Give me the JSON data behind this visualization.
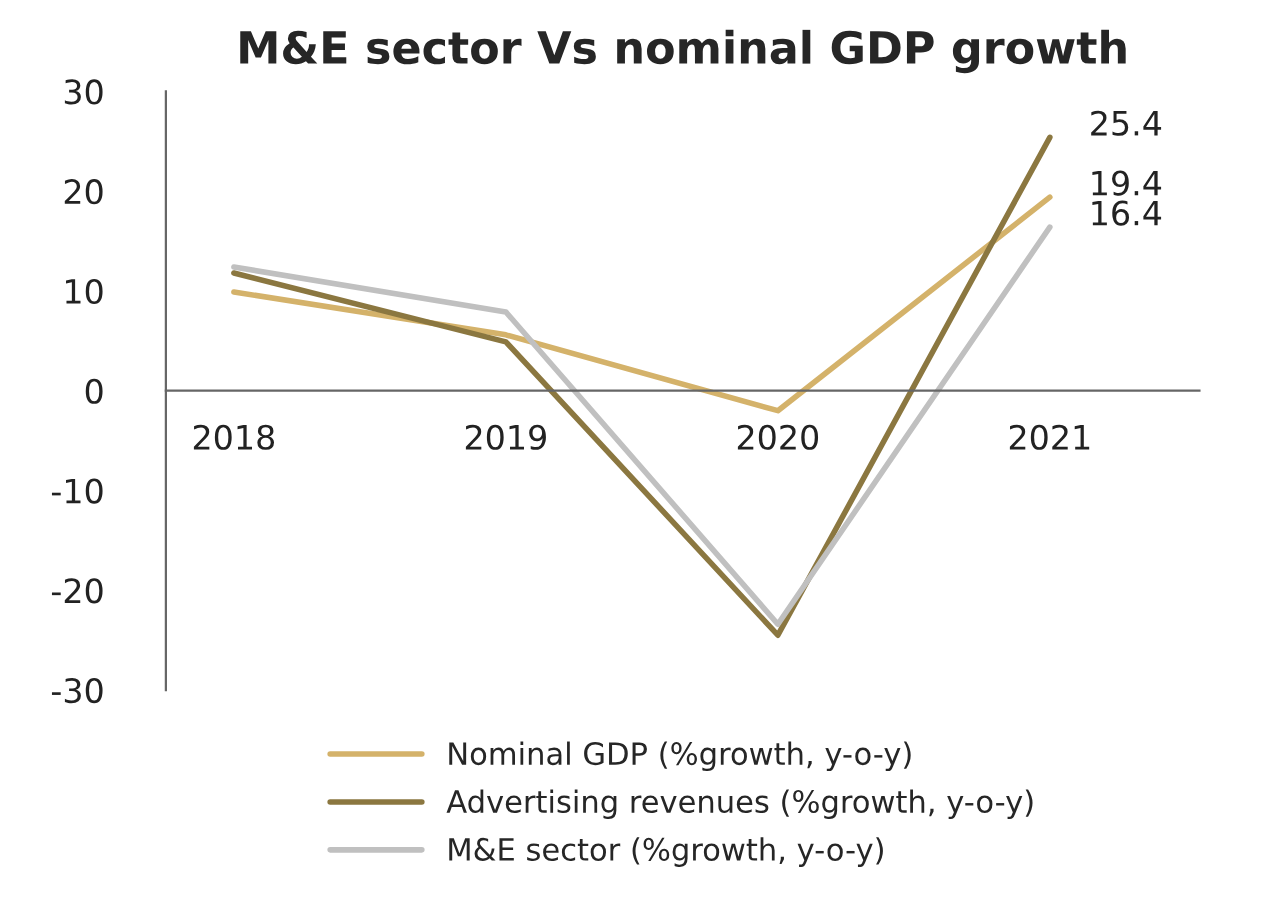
{
  "chart_data": {
    "type": "line",
    "title": "M&E sector Vs nominal GDP growth",
    "categories": [
      "2018",
      "2019",
      "2020",
      "2021"
    ],
    "series": [
      {
        "name": "Nominal GDP (%growth, y-o-y)",
        "color": "#d4b26a",
        "values": [
          9.9,
          5.6,
          -2.0,
          19.4
        ],
        "value_labels": [
          null,
          null,
          null,
          "19.4"
        ]
      },
      {
        "name": "Advertising revenues (%growth, y-o-y)",
        "color": "#8b7740",
        "values": [
          11.8,
          4.9,
          -24.5,
          25.4
        ],
        "value_labels": [
          null,
          null,
          null,
          "25.4"
        ]
      },
      {
        "name": "M&E sector (%growth, y-o-y)",
        "color": "#c0c0c0",
        "values": [
          12.4,
          7.9,
          -23.4,
          16.4
        ],
        "value_labels": [
          null,
          null,
          null,
          "16.4"
        ]
      }
    ],
    "ylim": [
      -30,
      30
    ],
    "yticks": [
      -30,
      -20,
      -10,
      0,
      10,
      20,
      30
    ],
    "grid": false,
    "legend": "bottom",
    "marker": "none",
    "line_style": "solid"
  }
}
